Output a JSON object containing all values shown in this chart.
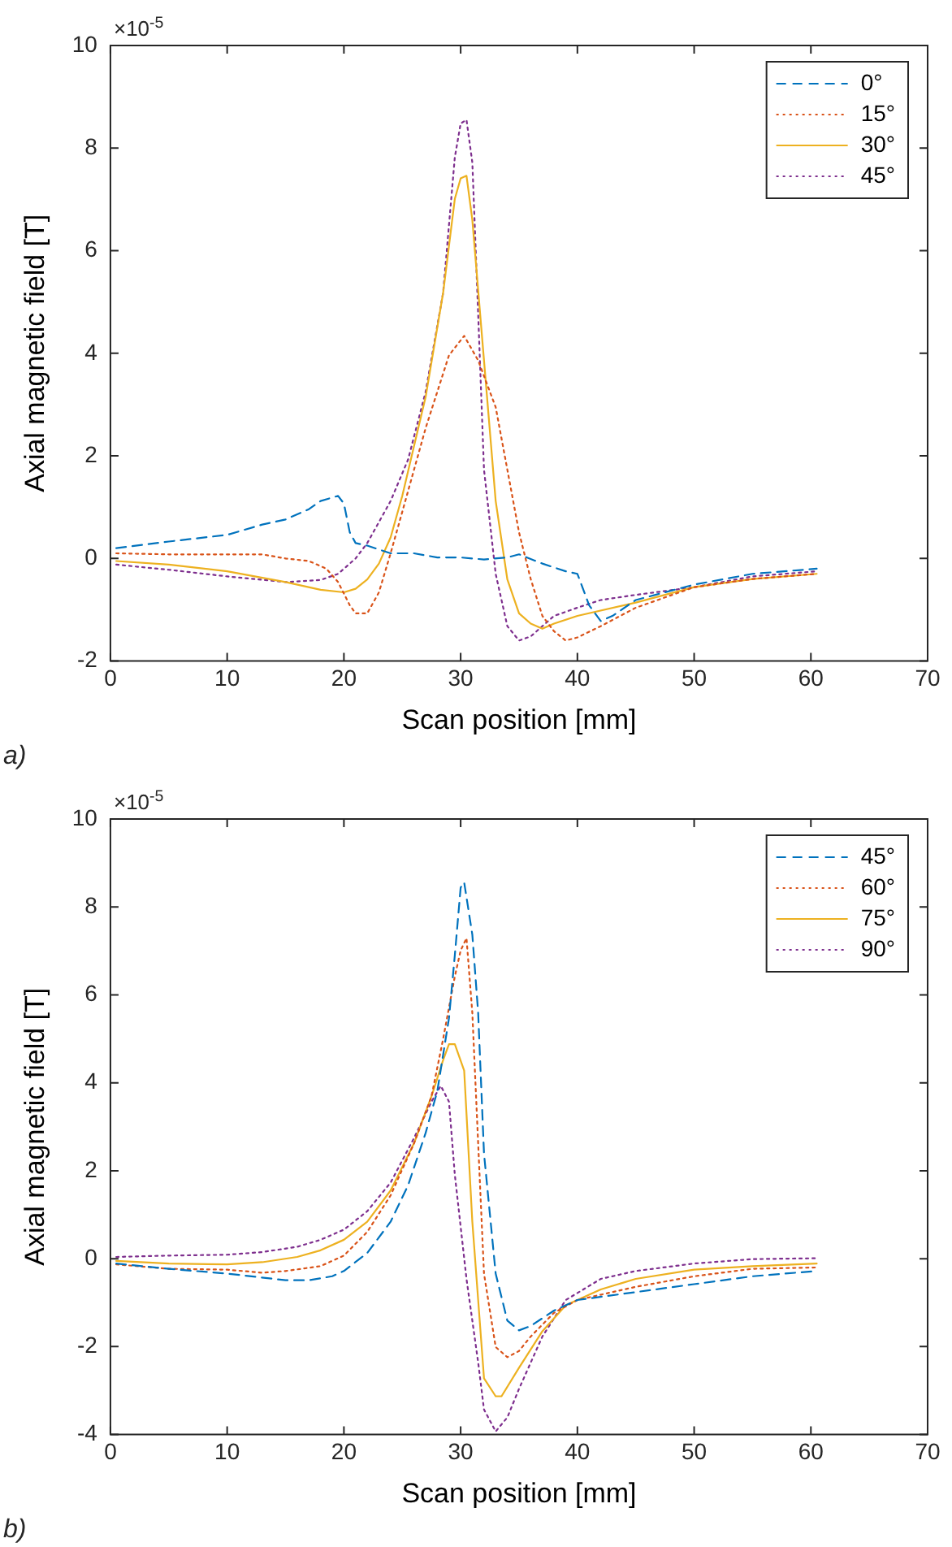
{
  "chart_data": [
    {
      "type": "line",
      "xlabel": "Scan position [mm]",
      "ylabel": "Axial magnetic field [T]",
      "annotations": [
        "×10$^{-5}$",
        "a)"
      ],
      "xlim": [
        0,
        70
      ],
      "xticks": [
        0,
        10,
        20,
        30,
        40,
        50,
        60,
        70
      ],
      "ylim": [
        -2,
        10
      ],
      "yticks": [
        -2,
        0,
        2,
        4,
        6,
        8,
        10
      ],
      "grid": false,
      "legend": "top right",
      "series": [
        {
          "name": "0°",
          "color": "#0072bd",
          "line_style": "dashed",
          "x": [
            0.5,
            5,
            10,
            13,
            15,
            17,
            18,
            19.5,
            20,
            20.5,
            21,
            22,
            24,
            26,
            28,
            30,
            32,
            34,
            35,
            37,
            39,
            40,
            41,
            42,
            43,
            45,
            50,
            55,
            60.5
          ],
          "values": [
            0.2,
            0.33,
            0.46,
            0.66,
            0.76,
            0.96,
            1.12,
            1.22,
            1.07,
            0.51,
            0.3,
            0.25,
            0.1,
            0.1,
            0.02,
            0.02,
            -0.02,
            0.02,
            0.08,
            -0.1,
            -0.25,
            -0.3,
            -0.91,
            -1.22,
            -1.12,
            -0.81,
            -0.51,
            -0.3,
            -0.2
          ]
        },
        {
          "name": "15°",
          "color": "#d95319",
          "line_style": "dotted",
          "x": [
            0.5,
            5,
            10,
            13,
            15,
            17,
            18.5,
            19.5,
            20.5,
            21,
            22,
            23,
            24,
            25,
            27,
            29,
            30.3,
            31.5,
            33,
            34,
            35,
            36,
            37,
            38,
            39,
            40,
            42,
            45,
            50,
            55,
            60.5
          ],
          "values": [
            0.1,
            0.08,
            0.08,
            0.08,
            0,
            -0.05,
            -0.2,
            -0.46,
            -0.91,
            -1.07,
            -1.07,
            -0.66,
            0.1,
            0.91,
            2.54,
            3.96,
            4.34,
            3.86,
            2.95,
            1.73,
            0.51,
            -0.4,
            -1.12,
            -1.42,
            -1.6,
            -1.54,
            -1.32,
            -0.96,
            -0.56,
            -0.4,
            -0.3
          ]
        },
        {
          "name": "30°",
          "color": "#edb120",
          "line_style": "solid",
          "x": [
            0.5,
            5,
            10,
            15,
            18,
            20,
            21,
            22,
            23,
            24,
            25,
            27,
            28.5,
            29.5,
            30,
            30.5,
            31,
            32,
            33,
            34,
            35,
            36,
            37,
            38,
            40,
            45,
            50,
            55,
            60.5
          ],
          "values": [
            -0.05,
            -0.12,
            -0.25,
            -0.46,
            -0.61,
            -0.66,
            -0.59,
            -0.41,
            -0.1,
            0.41,
            1.22,
            3.15,
            5.18,
            7.01,
            7.41,
            7.46,
            6.6,
            3.86,
            1.12,
            -0.41,
            -1.07,
            -1.27,
            -1.37,
            -1.27,
            -1.12,
            -0.86,
            -0.56,
            -0.4,
            -0.3
          ]
        },
        {
          "name": "45°",
          "color": "#7e2f8e",
          "line_style": "dotted",
          "x": [
            0.5,
            5,
            10,
            15,
            18,
            19.5,
            21,
            22,
            24,
            25.5,
            27,
            28.5,
            29.5,
            30,
            30.5,
            31,
            31.5,
            32,
            33,
            34,
            35,
            36,
            37,
            38,
            40,
            42,
            45,
            50,
            55,
            60.5
          ],
          "values": [
            -0.12,
            -0.22,
            -0.35,
            -0.46,
            -0.42,
            -0.3,
            0,
            0.3,
            1.12,
            1.93,
            3.25,
            5.18,
            7.82,
            8.48,
            8.55,
            7.72,
            4.77,
            1.73,
            -0.3,
            -1.32,
            -1.6,
            -1.52,
            -1.32,
            -1.12,
            -0.96,
            -0.81,
            -0.71,
            -0.56,
            -0.35,
            -0.25
          ]
        }
      ]
    },
    {
      "type": "line",
      "xlabel": "Scan position [mm]",
      "ylabel": "Axial magnetic field [T]",
      "annotations": [
        "×10$^{-5}$",
        "b)"
      ],
      "xlim": [
        0,
        70
      ],
      "xticks": [
        0,
        10,
        20,
        30,
        40,
        50,
        60,
        70
      ],
      "ylim": [
        -4,
        10
      ],
      "yticks": [
        -4,
        -2,
        0,
        2,
        4,
        6,
        8,
        10
      ],
      "grid": false,
      "legend": "top right",
      "series": [
        {
          "name": "45°",
          "color": "#0072bd",
          "line_style": "dashed",
          "x": [
            0.5,
            5,
            10,
            15,
            17,
            19,
            20,
            22,
            24,
            25.5,
            27,
            28,
            29,
            29.5,
            30,
            30.3,
            31,
            31.5,
            32,
            33,
            34,
            35,
            36,
            38,
            40,
            45,
            50,
            55,
            60.5
          ],
          "values": [
            -0.11,
            -0.23,
            -0.34,
            -0.49,
            -0.49,
            -0.4,
            -0.28,
            0.13,
            0.84,
            1.67,
            2.86,
            3.81,
            5.47,
            6.9,
            8.44,
            8.56,
            7.37,
            5.59,
            2.39,
            -0.34,
            -1.41,
            -1.63,
            -1.53,
            -1.18,
            -0.94,
            -0.76,
            -0.58,
            -0.4,
            -0.28
          ]
        },
        {
          "name": "60°",
          "color": "#d95319",
          "line_style": "dotted",
          "x": [
            0.5,
            5,
            10,
            13,
            15,
            18,
            20,
            22,
            24,
            26,
            27.5,
            28.5,
            29.5,
            30,
            30.5,
            31,
            31.5,
            32,
            33,
            34,
            35,
            36,
            38,
            40,
            45,
            50,
            55,
            60.5
          ],
          "values": [
            -0.13,
            -0.23,
            -0.25,
            -0.32,
            -0.28,
            -0.17,
            0.07,
            0.61,
            1.44,
            2.62,
            3.69,
            5.0,
            6.42,
            7.01,
            7.29,
            5.59,
            2.62,
            -0.34,
            -2.01,
            -2.24,
            -2.1,
            -1.77,
            -1.23,
            -0.94,
            -0.64,
            -0.4,
            -0.23,
            -0.2
          ]
        },
        {
          "name": "75°",
          "color": "#edb120",
          "line_style": "solid",
          "x": [
            0.5,
            5,
            10,
            13,
            16,
            18,
            20,
            22,
            24,
            26,
            27.5,
            28.5,
            29,
            29.5,
            30.3,
            31,
            31.5,
            32,
            33,
            33.5,
            35,
            37,
            39,
            42,
            45,
            50,
            55,
            60.5
          ],
          "values": [
            -0.05,
            -0.11,
            -0.13,
            -0.08,
            0.04,
            0.19,
            0.43,
            0.84,
            1.55,
            2.62,
            3.69,
            4.52,
            4.88,
            4.88,
            4.28,
            0.84,
            -0.94,
            -2.72,
            -3.13,
            -3.13,
            -2.48,
            -1.65,
            -1.06,
            -0.7,
            -0.46,
            -0.25,
            -0.17,
            -0.11
          ]
        },
        {
          "name": "90°",
          "color": "#7e2f8e",
          "line_style": "dotted",
          "x": [
            0.5,
            5,
            10,
            13,
            16,
            18,
            20,
            22,
            24,
            26,
            27.5,
            28.3,
            29,
            29.5,
            30.5,
            31.5,
            32,
            33,
            34,
            35,
            37,
            39,
            42,
            45,
            50,
            55,
            60.5
          ],
          "values": [
            0.04,
            0.07,
            0.09,
            0.15,
            0.27,
            0.43,
            0.66,
            1.08,
            1.73,
            2.74,
            3.57,
            3.93,
            3.57,
            1.91,
            -0.46,
            -2.36,
            -3.43,
            -3.93,
            -3.61,
            -2.96,
            -1.77,
            -0.94,
            -0.46,
            -0.28,
            -0.11,
            -0.01,
            0.01
          ]
        }
      ]
    }
  ]
}
